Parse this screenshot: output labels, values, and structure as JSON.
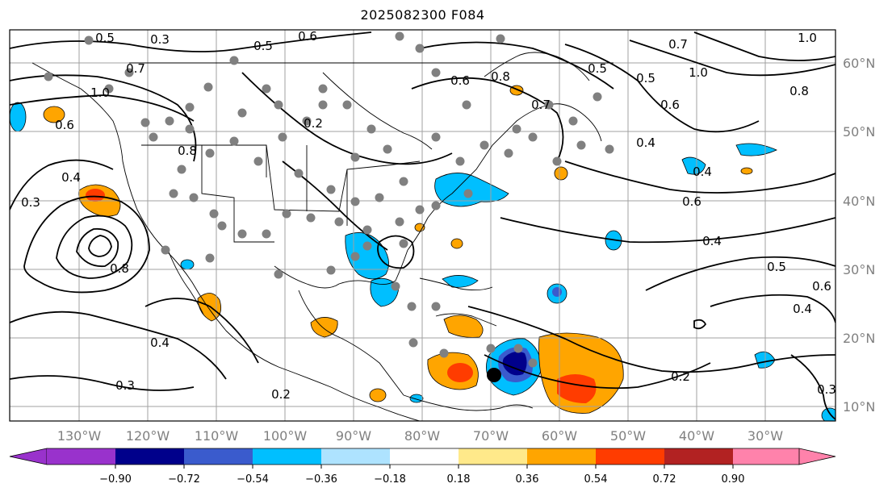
{
  "title": "2025082300 F084",
  "lon_labels": [
    "130°W",
    "120°W",
    "110°W",
    "100°W",
    "90°W",
    "80°W",
    "70°W",
    "60°W",
    "50°W",
    "40°W",
    "30°W"
  ],
  "lat_labels": [
    "60°N",
    "50°N",
    "40°N",
    "30°N",
    "20°N",
    "10°N"
  ],
  "colorbar": {
    "ticks": [
      "−0.90",
      "−0.72",
      "−0.54",
      "−0.36",
      "−0.18",
      "0.18",
      "0.36",
      "0.54",
      "0.72",
      "0.90"
    ],
    "colors": [
      "#9932cc",
      "#00008b",
      "#3a5bcd",
      "#00bfff",
      "#aee3ff",
      "#ffffff",
      "#ffe98a",
      "#ffa500",
      "#ff3c00",
      "#b22222",
      "#ff82ab"
    ]
  },
  "contour_labels": [
    "0.5",
    "0.3",
    "0.6",
    "0.5",
    "0.7",
    "1.0",
    "0.6",
    "0.8",
    "0.2",
    "0.4",
    "0.3",
    "0.8",
    "0.4",
    "0.5",
    "0.6",
    "0.7",
    "0.8",
    "1.0",
    "0.5",
    "0.6",
    "0.7",
    "1.0",
    "0.8",
    "0.4",
    "0.6",
    "0.4",
    "0.5",
    "0.4",
    "0.2",
    "0.4",
    "0.3",
    "0.2",
    "0.6",
    "0.3"
  ],
  "storm_marker": {
    "lon": -69.5,
    "lat": 14.5
  }
}
